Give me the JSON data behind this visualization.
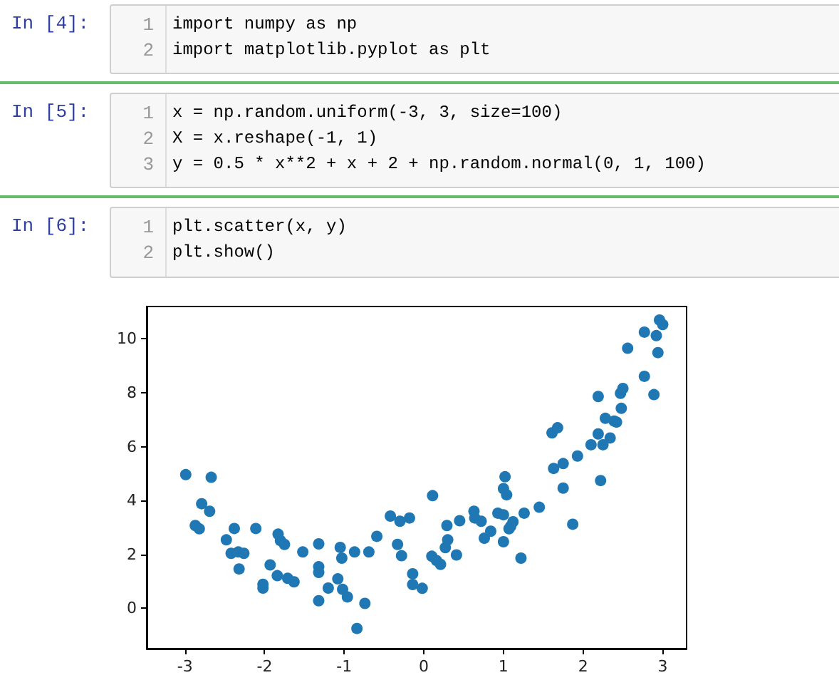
{
  "chart_data": {
    "type": "scatter",
    "annotations": [
      "In [4]:",
      "1",
      "import numpy as np",
      "2",
      "import matplotlib.pyplot as plt",
      "In [5]:",
      "1",
      "x = np.random.uniform(-3, 3, size=100)",
      "2",
      "X = x.reshape(-1, 1)",
      "3",
      "y = 0.5 * x**2 + x + 2 + np.random.normal(0, 1, 100)",
      "In [6]:",
      "1",
      "plt.scatter(x, y)",
      "2",
      "plt.show()"
    ],
    "x": [
      -2.99,
      -2.67,
      -2.87,
      -2.82,
      -2.79,
      -2.69,
      -2.48,
      -2.38,
      -2.42,
      -2.33,
      -2.26,
      -2.32,
      -2.11,
      -2.02,
      -2.02,
      -1.93,
      -1.84,
      -1.83,
      -1.8,
      -1.75,
      -1.71,
      -1.63,
      -1.52,
      -1.32,
      -1.32,
      -1.32,
      -1.32,
      -1.2,
      -1.08,
      -1.05,
      -1.03,
      -1.02,
      -0.96,
      -0.87,
      -0.84,
      -0.74,
      -0.69,
      -0.59,
      -0.42,
      -0.33,
      -0.3,
      -0.28,
      -0.18,
      -0.14,
      -0.14,
      -0.02,
      0.11,
      0.1,
      0.16,
      0.21,
      0.29,
      0.3,
      0.27,
      0.41,
      0.45,
      0.63,
      0.64,
      0.72,
      0.76,
      0.84,
      0.93,
      1.0,
      1.02,
      1.0,
      1.04,
      1.0,
      1.07,
      1.12,
      1.09,
      1.22,
      1.26,
      1.45,
      1.61,
      1.68,
      1.63,
      1.75,
      1.75,
      1.87,
      1.93,
      2.1,
      2.19,
      2.19,
      2.25,
      2.22,
      2.28,
      2.34,
      2.39,
      2.42,
      2.48,
      2.47,
      2.5,
      2.56,
      2.77,
      2.77,
      2.89,
      2.92,
      2.94,
      2.96,
      3.0
    ],
    "values": [
      4.96,
      4.86,
      3.07,
      2.95,
      3.88,
      3.6,
      2.54,
      2.96,
      2.04,
      2.09,
      2.04,
      1.46,
      2.96,
      0.89,
      0.75,
      1.61,
      1.21,
      2.75,
      2.51,
      2.37,
      1.11,
      0.98,
      2.09,
      2.39,
      1.54,
      1.33,
      0.28,
      0.75,
      1.09,
      2.26,
      1.86,
      0.7,
      0.42,
      2.09,
      -0.75,
      0.18,
      2.09,
      2.67,
      3.42,
      2.37,
      3.23,
      1.95,
      3.35,
      1.28,
      0.88,
      0.74,
      4.18,
      1.93,
      1.77,
      1.63,
      3.07,
      2.54,
      2.25,
      1.98,
      3.25,
      3.6,
      3.35,
      3.23,
      2.6,
      2.86,
      3.53,
      3.47,
      4.88,
      4.44,
      4.21,
      2.47,
      2.95,
      3.21,
      3.04,
      1.86,
      3.53,
      3.75,
      6.51,
      6.7,
      5.19,
      5.37,
      4.46,
      3.12,
      5.65,
      6.07,
      7.86,
      6.47,
      6.07,
      4.74,
      7.05,
      6.32,
      6.95,
      6.91,
      7.42,
      7.98,
      8.16,
      9.65,
      8.61,
      10.25,
      7.93,
      10.12,
      9.49,
      10.7,
      10.53
    ],
    "color": "#1f77b4",
    "marker": "circle",
    "xlim": [
      -3.48,
      3.3
    ],
    "xticks": [
      -3,
      -2,
      -1,
      0,
      1,
      2,
      3
    ],
    "ylim": [
      -1.5,
      11.2
    ],
    "yticks": [
      0,
      2,
      4,
      6,
      8,
      10
    ],
    "grid": false
  }
}
